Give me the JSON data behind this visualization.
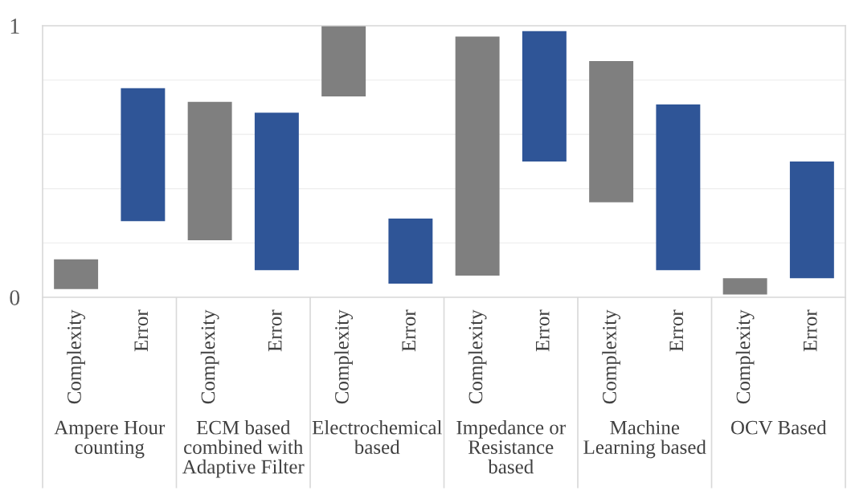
{
  "chart_data": {
    "type": "bar",
    "categories": [
      "Complexity",
      "Error",
      "Complexity",
      "Error",
      "Complexity",
      "Error",
      "Complexity",
      "Error",
      "Complexity",
      "Error",
      "Complexity",
      "Error"
    ],
    "values": [
      0.11,
      0.49,
      0.51,
      0.58,
      0.26,
      0.24,
      0.88,
      0.48,
      0.52,
      0.61,
      0.06,
      0.43
    ],
    "base": [
      0.03,
      0.28,
      0.21,
      0.1,
      0.74,
      0.05,
      0.08,
      0.5,
      0.35,
      0.1,
      0.01,
      0.07
    ],
    "colors": [
      "#7f7f7f",
      "#2f5597",
      "#7f7f7f",
      "#2f5597",
      "#7f7f7f",
      "#2f5597",
      "#7f7f7f",
      "#2f5597",
      "#7f7f7f",
      "#2f5597",
      "#7f7f7f",
      "#2f5597"
    ],
    "ylim": [
      0,
      1
    ],
    "yticks": [
      0,
      {
        "value": 0.2,
        "label": null
      },
      {
        "value": 0.4,
        "label": null
      },
      {
        "value": 0.6,
        "label": null
      },
      {
        "value": 0.8,
        "label": null
      },
      1
    ],
    "grid": "y",
    "annotations": [
      "Ampere Hour counting",
      "ECM based combined with Adaptive Filter",
      "Electrochemical based",
      "Impedance or Resistance based",
      "Machine Learning based",
      "OCV Based"
    ]
  }
}
